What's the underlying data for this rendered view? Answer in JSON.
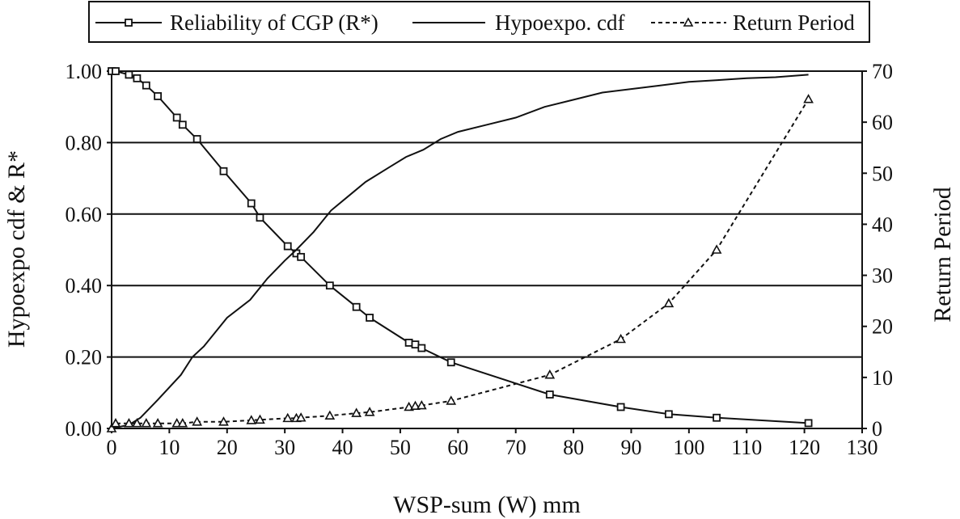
{
  "chart_data": {
    "type": "line",
    "xlabel": "WSP-sum (W) mm",
    "ylabel": "Hypoexpo cdf & R*",
    "y2label": "Return Period",
    "xlim": [
      0,
      130
    ],
    "ylim": [
      0,
      1.0
    ],
    "y2lim": [
      0,
      70
    ],
    "x_ticks": [
      0,
      10,
      20,
      30,
      40,
      50,
      60,
      70,
      80,
      90,
      100,
      110,
      120,
      130
    ],
    "x_tick_labels": [
      "0",
      "10",
      "20",
      "30",
      "40",
      "50",
      "60",
      "70",
      "80",
      "90",
      "100",
      "110",
      "120",
      "130"
    ],
    "y_ticks": [
      0,
      0.2,
      0.4,
      0.6,
      0.8,
      1.0
    ],
    "y_tick_labels": [
      "0.00",
      "0.20",
      "0.40",
      "0.60",
      "0.80",
      "1.00"
    ],
    "y2_ticks": [
      0,
      10,
      20,
      30,
      40,
      50,
      60,
      70
    ],
    "y2_tick_labels": [
      "0",
      "10",
      "20",
      "30",
      "40",
      "50",
      "60",
      "70"
    ],
    "grid": "horizontal",
    "legend_position": "top",
    "series": [
      {
        "name": "Reliability of CGP (R*)",
        "axis": "left",
        "style": "solid",
        "marker": "square",
        "x": [
          0,
          0.7,
          3,
          4.4,
          6,
          8,
          11.3,
          12.3,
          14.8,
          19.4,
          24.2,
          25.7,
          30.5,
          32,
          32.8,
          37.8,
          42.4,
          44.7,
          51.5,
          52.6,
          53.7,
          58.8,
          75.9,
          88.2,
          96.5,
          104.8,
          120.7
        ],
        "y": [
          1.0,
          1.0,
          0.99,
          0.98,
          0.96,
          0.93,
          0.87,
          0.85,
          0.81,
          0.72,
          0.63,
          0.59,
          0.51,
          0.49,
          0.48,
          0.4,
          0.34,
          0.31,
          0.24,
          0.235,
          0.225,
          0.185,
          0.095,
          0.06,
          0.04,
          0.03,
          0.015
        ]
      },
      {
        "name": "Hypoexpo. cdf",
        "axis": "left",
        "style": "solid",
        "marker": "none",
        "x": [
          0,
          3,
          5,
          8,
          12,
          14,
          16,
          20,
          24,
          25.5,
          27,
          30,
          32,
          35,
          38,
          41,
          44,
          48,
          51,
          54,
          57,
          60,
          65,
          70,
          75,
          80,
          85,
          90,
          95,
          100,
          105,
          110,
          115,
          120.7
        ],
        "y": [
          0,
          0.01,
          0.03,
          0.08,
          0.15,
          0.2,
          0.23,
          0.31,
          0.36,
          0.39,
          0.42,
          0.47,
          0.5,
          0.55,
          0.61,
          0.65,
          0.69,
          0.73,
          0.76,
          0.78,
          0.81,
          0.83,
          0.85,
          0.87,
          0.9,
          0.92,
          0.94,
          0.95,
          0.96,
          0.97,
          0.975,
          0.98,
          0.983,
          0.99
        ]
      },
      {
        "name": "Return Period",
        "axis": "right",
        "style": "dashed",
        "marker": "triangle",
        "x": [
          0,
          0.7,
          3,
          4.4,
          6,
          8,
          11.3,
          12.3,
          14.8,
          19.4,
          24.2,
          25.7,
          30.5,
          32,
          32.8,
          37.8,
          42.4,
          44.7,
          51.5,
          52.6,
          53.7,
          58.8,
          75.9,
          88.2,
          96.5,
          104.8,
          120.7
        ],
        "y": [
          0,
          1,
          1,
          1,
          1,
          1,
          1,
          1,
          1.3,
          1.3,
          1.6,
          1.7,
          2.0,
          2.0,
          2.1,
          2.5,
          3.0,
          3.2,
          4.2,
          4.4,
          4.5,
          5.4,
          10.5,
          17.5,
          24.5,
          35.0,
          64.5
        ]
      }
    ]
  }
}
